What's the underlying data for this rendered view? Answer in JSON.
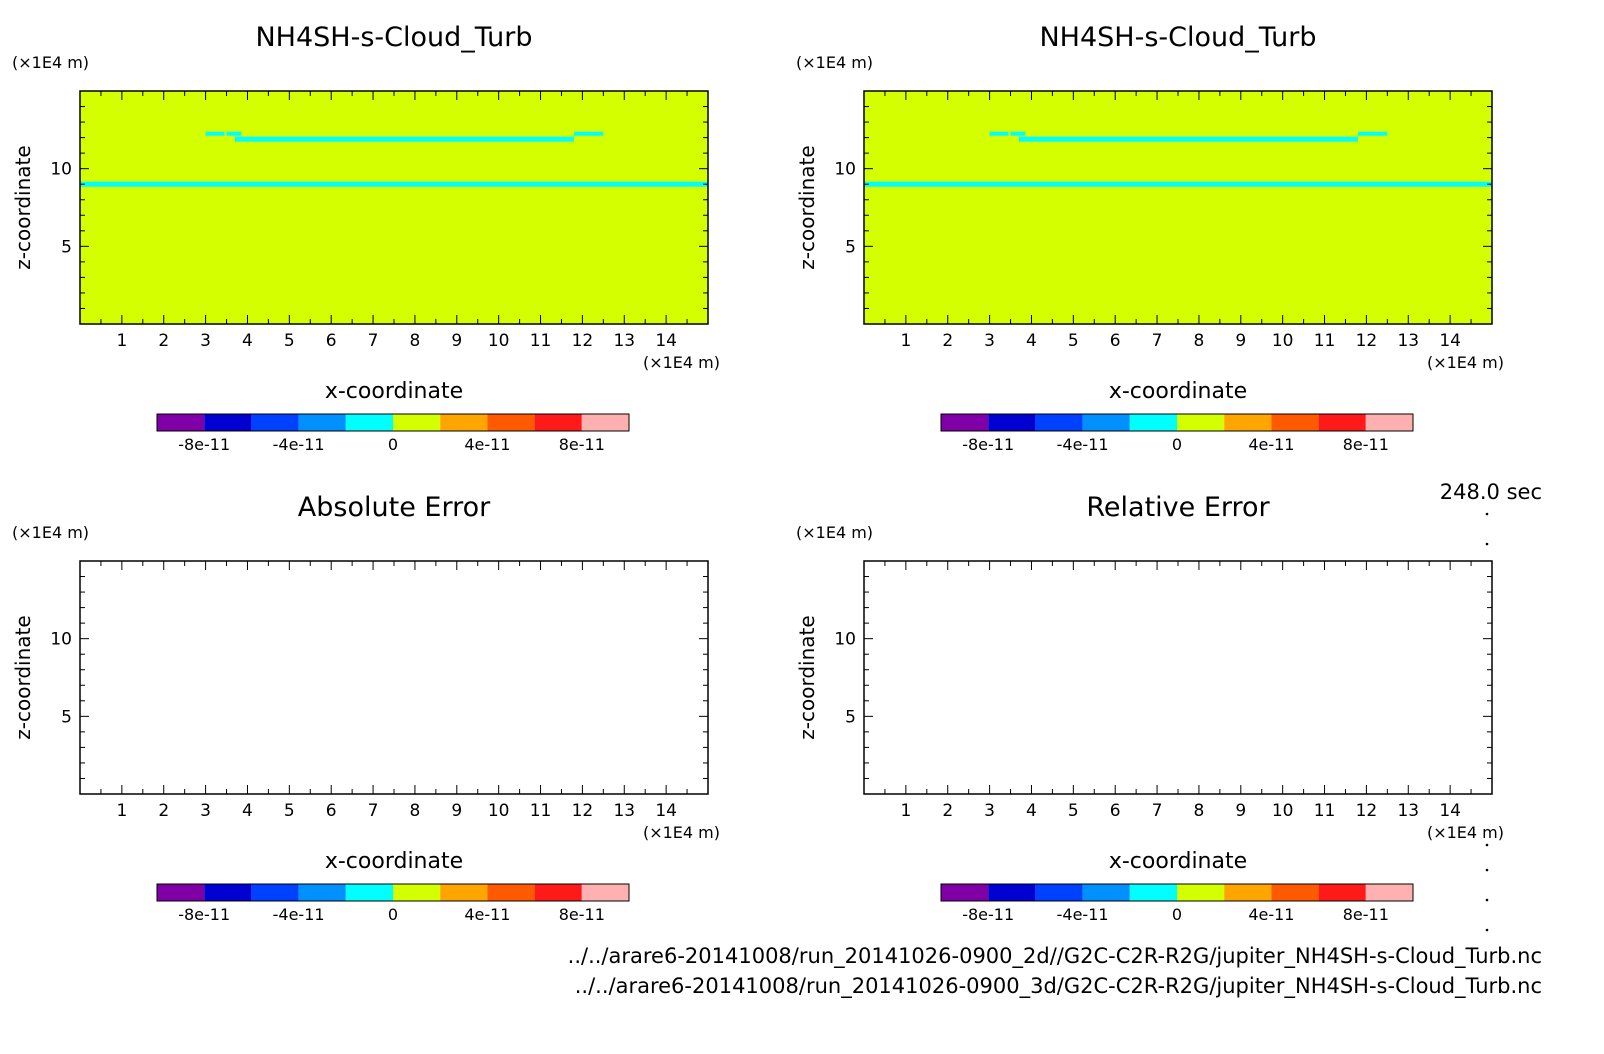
{
  "figure": {
    "time_label": "248.0 sec",
    "file_paths": [
      "../../arare6-20141008/run_20141026-0900_2d//G2C-C2R-R2G/jupiter_NH4SH-s-Cloud_Turb.nc",
      "../../arare6-20141008/run_20141026-0900_3d/G2C-C2R-R2G/jupiter_NH4SH-s-Cloud_Turb.nc"
    ]
  },
  "colorbar": {
    "colors": [
      "#8000a8",
      "#0000d0",
      "#0040ff",
      "#0090ff",
      "#00ffff",
      "#d4ff00",
      "#ffa500",
      "#ff5a00",
      "#ff1a1a",
      "#ffb0b0"
    ],
    "tick_labels": [
      "-8e-11",
      "-4e-11",
      "0",
      "4e-11",
      "8e-11"
    ],
    "tick_values": [
      -8e-11,
      -4e-11,
      0,
      4e-11,
      8e-11
    ],
    "range": [
      -1e-10,
      1e-10
    ]
  },
  "chart_data": [
    {
      "type": "heatmap",
      "title": "NH4SH-s-Cloud_Turb",
      "xlabel": "x-coordinate",
      "ylabel": "z-coordinate",
      "x_unit": "(×1E4 m)",
      "y_unit": "(×1E4 m)",
      "xlim": [
        0,
        15
      ],
      "ylim": [
        0,
        15
      ],
      "x_ticks": [
        1,
        2,
        3,
        4,
        5,
        6,
        7,
        8,
        9,
        10,
        11,
        12,
        13,
        14
      ],
      "y_ticks": [
        5,
        10
      ],
      "background_value": 1e-11,
      "cloud_bands": [
        {
          "z": 9.0,
          "x_start": 0,
          "x_end": 15,
          "value": -1e-11
        },
        {
          "z": 11.9,
          "x_start": 3.7,
          "x_end": 11.8,
          "value": -1e-11
        }
      ]
    },
    {
      "type": "heatmap",
      "title": "NH4SH-s-Cloud_Turb",
      "xlabel": "x-coordinate",
      "ylabel": "z-coordinate",
      "x_unit": "(×1E4 m)",
      "y_unit": "(×1E4 m)",
      "xlim": [
        0,
        15
      ],
      "ylim": [
        0,
        15
      ],
      "x_ticks": [
        1,
        2,
        3,
        4,
        5,
        6,
        7,
        8,
        9,
        10,
        11,
        12,
        13,
        14
      ],
      "y_ticks": [
        5,
        10
      ],
      "background_value": 1e-11,
      "cloud_bands": [
        {
          "z": 9.0,
          "x_start": 0,
          "x_end": 15,
          "value": -1e-11
        },
        {
          "z": 11.9,
          "x_start": 3.7,
          "x_end": 11.8,
          "value": -1e-11
        }
      ]
    },
    {
      "type": "heatmap",
      "title": "Absolute Error",
      "xlabel": "x-coordinate",
      "ylabel": "z-coordinate",
      "x_unit": "(×1E4 m)",
      "y_unit": "(×1E4 m)",
      "xlim": [
        0,
        15
      ],
      "ylim": [
        0,
        15
      ],
      "x_ticks": [
        1,
        2,
        3,
        4,
        5,
        6,
        7,
        8,
        9,
        10,
        11,
        12,
        13,
        14
      ],
      "y_ticks": [
        5,
        10
      ],
      "background_value": null,
      "cloud_bands": []
    },
    {
      "type": "heatmap",
      "title": "Relative Error",
      "xlabel": "x-coordinate",
      "ylabel": "z-coordinate",
      "x_unit": "(×1E4 m)",
      "y_unit": "(×1E4 m)",
      "xlim": [
        0,
        15
      ],
      "ylim": [
        0,
        15
      ],
      "x_ticks": [
        1,
        2,
        3,
        4,
        5,
        6,
        7,
        8,
        9,
        10,
        11,
        12,
        13,
        14
      ],
      "y_ticks": [
        5,
        10
      ],
      "background_value": null,
      "cloud_bands": []
    }
  ]
}
